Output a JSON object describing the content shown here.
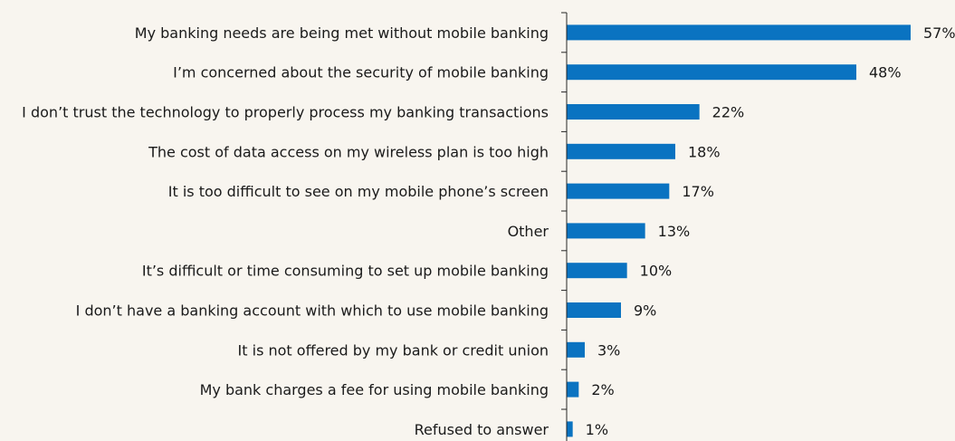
{
  "chart_data": {
    "type": "bar",
    "orientation": "horizontal",
    "title": "",
    "xlabel": "",
    "ylabel": "",
    "categories": [
      "My banking needs are being met without mobile banking",
      "I’m concerned about the security of mobile banking",
      "I don’t trust the technology to properly process my banking transactions",
      "The cost of data access on my wireless plan is too high",
      "It is too difficult to see on my mobile phone’s screen",
      "Other",
      "It’s difficult or time consuming to set up mobile banking",
      "I don’t have a banking account with which to use mobile banking",
      "It is not offered by my bank or credit union",
      "My bank charges a fee for using mobile banking",
      "Refused to answer"
    ],
    "values": [
      57,
      48,
      22,
      18,
      17,
      13,
      10,
      9,
      3,
      2,
      1
    ],
    "data_labels": [
      "57%",
      "48%",
      "22%",
      "18%",
      "17%",
      "13%",
      "10%",
      "9%",
      "3%",
      "2%",
      "1%"
    ],
    "unit": "%",
    "xlim": [
      0,
      57
    ],
    "grid": false,
    "legend": "none",
    "bar_color": "#0a73c1"
  }
}
